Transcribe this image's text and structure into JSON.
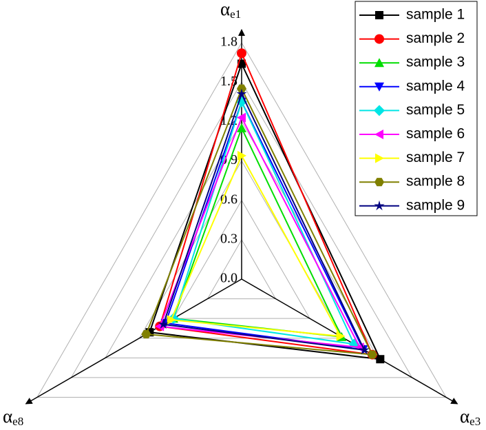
{
  "chart_data": {
    "type": "radar",
    "categories": [
      [
        "α",
        "e1"
      ],
      [
        "α",
        "e3"
      ],
      [
        "α",
        "e8"
      ]
    ],
    "ylim": [
      0,
      1.8
    ],
    "yticks": [
      {
        "value": 0,
        "label": "0.0"
      },
      0.3,
      0.6,
      0.9,
      1.2,
      1.5,
      1.8
    ],
    "grid": true,
    "legend": "upper right",
    "series": [
      {
        "name": "sample 1",
        "color": "#000000",
        "marker": "square",
        "values": [
          1.64,
          1.22,
          0.81
        ]
      },
      {
        "name": "sample 2",
        "color": "#ff0000",
        "marker": "circle",
        "values": [
          1.72,
          1.15,
          0.72
        ]
      },
      {
        "name": "sample 3",
        "color": "#00dd00",
        "marker": "triangle-up",
        "values": [
          1.15,
          0.88,
          0.6
        ]
      },
      {
        "name": "sample 4",
        "color": "#0000ff",
        "marker": "triangle-down",
        "values": [
          1.35,
          1.07,
          0.67
        ]
      },
      {
        "name": "sample 5",
        "color": "#00e5e5",
        "marker": "diamond",
        "values": [
          1.35,
          0.99,
          0.6
        ]
      },
      {
        "name": "sample 6",
        "color": "#ff00ff",
        "marker": "triangle-left",
        "values": [
          1.23,
          1.04,
          0.72
        ]
      },
      {
        "name": "sample 7",
        "color": "#ffff00",
        "marker": "triangle-right",
        "values": [
          0.94,
          0.87,
          0.62
        ]
      },
      {
        "name": "sample 8",
        "color": "#808000",
        "marker": "hexagon",
        "values": [
          1.45,
          1.15,
          0.84
        ]
      },
      {
        "name": "sample 9",
        "color": "#000080",
        "marker": "star",
        "values": [
          1.41,
          1.08,
          0.69
        ]
      }
    ]
  }
}
